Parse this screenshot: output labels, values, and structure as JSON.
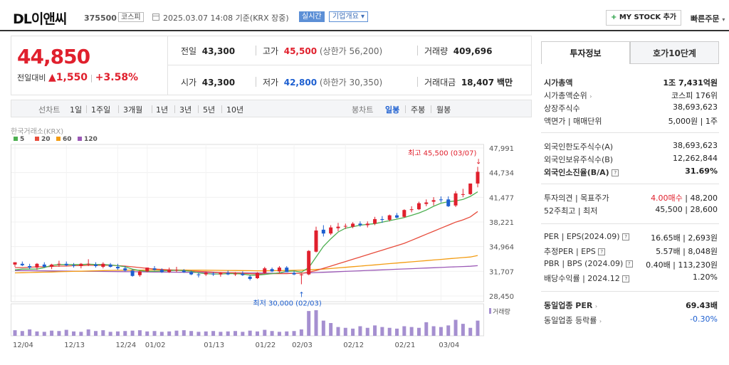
{
  "header": {
    "name": "DL이앤씨",
    "code": "375500",
    "market": "코스피",
    "base_time": "2025.03.07 14:08 기준(KRX 장중)",
    "realtime": "실시간",
    "company_info": "기업개요",
    "mystock": "MY STOCK 추가",
    "quick_order": "빠른주문"
  },
  "price": {
    "current": "44,850",
    "change_label": "전일대비",
    "change": "1,550",
    "change_pct": "+3.58%"
  },
  "quote": {
    "prev_label": "전일",
    "prev": "43,300",
    "high_label": "고가",
    "high": "45,500",
    "upper_limit": "(상한가 56,200)",
    "volume_label": "거래량",
    "volume": "409,696",
    "open_label": "시가",
    "open": "43,300",
    "low_label": "저가",
    "low": "42,800",
    "lower_limit": "(하한가 30,350)",
    "amount_label": "거래대금",
    "amount": "18,407",
    "amount_unit": "백만"
  },
  "period_bar": {
    "line_label": "선차트",
    "line_items": [
      "1일",
      "1주일",
      "3개월",
      "1년",
      "3년",
      "5년",
      "10년"
    ],
    "candle_label": "봉차트",
    "candle_items": [
      "일봉",
      "주봉",
      "월봉"
    ],
    "candle_active": "일봉"
  },
  "chart_data": {
    "type": "candlestick",
    "source": "한국거래소(KRX)",
    "legend": [
      "5",
      "20",
      "60",
      "120"
    ],
    "legend_colors": [
      "#4caf50",
      "#e74c3c",
      "#f39c12",
      "#9b59b6"
    ],
    "y_ticks": [
      "47,991",
      "44,734",
      "41,477",
      "38,221",
      "34,964",
      "31,707",
      "28,450"
    ],
    "y_min": 28450,
    "y_max": 47991,
    "x_labels": [
      "12/04",
      "12/13",
      "12/24",
      "01/02",
      "01/13",
      "01/22",
      "02/03",
      "02/12",
      "02/21",
      "03/04"
    ],
    "x_label_index": [
      0,
      7,
      14,
      18,
      26,
      33,
      38,
      45,
      52,
      58
    ],
    "high_annotation": "최고 45,500 (03/07)",
    "low_annotation": "최저 30,000 (02/03)",
    "volume_label": "거래량",
    "candles": [
      [
        32600,
        32900,
        32300,
        32900
      ],
      [
        32700,
        33000,
        32400,
        32500
      ],
      [
        32400,
        32700,
        32000,
        32200
      ],
      [
        32200,
        32800,
        31900,
        32700
      ],
      [
        32600,
        32900,
        32200,
        32300
      ],
      [
        32300,
        32700,
        32000,
        32600
      ],
      [
        32600,
        33100,
        32300,
        32700
      ],
      [
        32700,
        33000,
        32400,
        32500
      ],
      [
        32500,
        32800,
        32200,
        32400
      ],
      [
        32400,
        32800,
        32100,
        32700
      ],
      [
        32700,
        33300,
        32400,
        32700
      ],
      [
        32600,
        32900,
        32200,
        32400
      ],
      [
        32300,
        32900,
        32100,
        32700
      ],
      [
        32600,
        32800,
        32200,
        32300
      ],
      [
        32300,
        32700,
        31900,
        32100
      ],
      [
        32100,
        32400,
        31700,
        31800
      ],
      [
        31800,
        32000,
        31000,
        31100
      ],
      [
        31200,
        31800,
        31000,
        31700
      ],
      [
        31700,
        32200,
        31600,
        32200
      ],
      [
        32100,
        32400,
        31800,
        31900
      ],
      [
        31900,
        32100,
        31500,
        31600
      ],
      [
        31600,
        32200,
        31500,
        31900
      ],
      [
        31900,
        32300,
        31600,
        31900
      ],
      [
        31800,
        32000,
        31500,
        31600
      ],
      [
        31600,
        31800,
        31200,
        31300
      ],
      [
        31300,
        31500,
        30900,
        31200
      ],
      [
        31300,
        31700,
        31100,
        31500
      ],
      [
        31400,
        31600,
        31100,
        31300
      ],
      [
        31300,
        31600,
        31000,
        31500
      ],
      [
        31500,
        31800,
        31200,
        31300
      ],
      [
        31300,
        31600,
        31100,
        31400
      ],
      [
        31400,
        31700,
        31100,
        31200
      ],
      [
        31000,
        31200,
        30500,
        30700
      ],
      [
        30800,
        31600,
        30700,
        31500
      ],
      [
        31500,
        32300,
        31400,
        32100
      ],
      [
        32000,
        32200,
        31600,
        31700
      ],
      [
        31700,
        32400,
        31500,
        32200
      ],
      [
        32200,
        32400,
        31600,
        31600
      ],
      [
        31500,
        31800,
        31200,
        31300
      ],
      [
        31200,
        31400,
        30000,
        31300
      ],
      [
        31300,
        34500,
        31200,
        34400
      ],
      [
        34300,
        37600,
        34200,
        37100
      ],
      [
        37200,
        37800,
        36300,
        36700
      ],
      [
        36700,
        37800,
        36500,
        37500
      ],
      [
        37400,
        38100,
        37000,
        37600
      ],
      [
        37700,
        38000,
        37300,
        37700
      ],
      [
        37600,
        38200,
        37400,
        38000
      ],
      [
        38000,
        38300,
        37600,
        37800
      ],
      [
        37800,
        38300,
        37500,
        38000
      ],
      [
        38000,
        38900,
        37800,
        38600
      ],
      [
        38600,
        39000,
        38100,
        38500
      ],
      [
        38500,
        39200,
        38300,
        39100
      ],
      [
        39100,
        39400,
        38700,
        38800
      ],
      [
        38900,
        39900,
        38800,
        39800
      ],
      [
        39800,
        40300,
        39500,
        39900
      ],
      [
        39900,
        40900,
        39800,
        40700
      ],
      [
        40600,
        41200,
        40300,
        40800
      ],
      [
        40900,
        41500,
        40400,
        41100
      ],
      [
        41200,
        41600,
        40800,
        41100
      ],
      [
        41200,
        41600,
        40200,
        40300
      ],
      [
        40400,
        42300,
        40200,
        42000
      ],
      [
        41800,
        42600,
        41500,
        41900
      ],
      [
        41900,
        43300,
        41800,
        43300
      ],
      [
        43300,
        45500,
        42800,
        44850
      ]
    ],
    "ma5": [
      31900,
      32000,
      32000,
      32000,
      32200,
      32500,
      32600,
      32600,
      32600,
      32600,
      32650,
      32600,
      32600,
      32550,
      32450,
      32300,
      32000,
      31800,
      31700,
      31700,
      31750,
      31800,
      31850,
      31800,
      31700,
      31500,
      31400,
      31350,
      31350,
      31400,
      31400,
      31350,
      31200,
      31200,
      31300,
      31400,
      31500,
      31700,
      31750,
      31600,
      32200,
      33600,
      35000,
      36000,
      36900,
      37400,
      37600,
      37800,
      37900,
      38000,
      38200,
      38400,
      38600,
      38800,
      39100,
      39400,
      39800,
      40300,
      40700,
      40900,
      41000,
      41200,
      41600,
      42200
    ],
    "ma20": [
      32200,
      32200,
      32250,
      32300,
      32300,
      32350,
      32400,
      32400,
      32450,
      32450,
      32500,
      32500,
      32500,
      32500,
      32450,
      32400,
      32300,
      32200,
      32100,
      32000,
      31950,
      31900,
      31850,
      31800,
      31750,
      31700,
      31650,
      31600,
      31550,
      31500,
      31500,
      31450,
      31400,
      31350,
      31350,
      31400,
      31400,
      31400,
      31450,
      31450,
      31600,
      31800,
      32100,
      32400,
      32700,
      33000,
      33300,
      33600,
      33900,
      34200,
      34500,
      34800,
      35100,
      35400,
      35800,
      36200,
      36600,
      37000,
      37400,
      37800,
      38200,
      38500,
      38900,
      39600
    ],
    "ma60": [
      31500,
      31520,
      31550,
      31580,
      31600,
      31620,
      31650,
      31680,
      31700,
      31720,
      31750,
      31780,
      31800,
      31820,
      31840,
      31850,
      31860,
      31870,
      31880,
      31880,
      31880,
      31880,
      31880,
      31880,
      31870,
      31860,
      31850,
      31840,
      31830,
      31820,
      31810,
      31800,
      31790,
      31780,
      31780,
      31790,
      31800,
      31820,
      31840,
      31860,
      31900,
      31950,
      32000,
      32080,
      32160,
      32240,
      32320,
      32400,
      32480,
      32560,
      32640,
      32720,
      32800,
      32880,
      32960,
      33040,
      33120,
      33200,
      33280,
      33360,
      33440,
      33520,
      33600,
      33800
    ],
    "ma120": [
      31800,
      31800,
      31790,
      31780,
      31770,
      31760,
      31750,
      31740,
      31730,
      31720,
      31710,
      31700,
      31690,
      31680,
      31670,
      31660,
      31650,
      31640,
      31630,
      31620,
      31610,
      31600,
      31590,
      31580,
      31570,
      31560,
      31550,
      31540,
      31530,
      31520,
      31510,
      31500,
      31490,
      31480,
      31470,
      31460,
      31450,
      31450,
      31460,
      31470,
      31500,
      31540,
      31580,
      31620,
      31660,
      31700,
      31740,
      31780,
      31820,
      31860,
      31900,
      31940,
      31980,
      32020,
      32060,
      32100,
      32140,
      32180,
      32220,
      32260,
      32300,
      32340,
      32380,
      32450
    ],
    "volumes": [
      14,
      12,
      16,
      11,
      10,
      13,
      12,
      15,
      11,
      10,
      16,
      12,
      14,
      10,
      11,
      12,
      13,
      14,
      11,
      12,
      10,
      11,
      13,
      14,
      12,
      10,
      11,
      12,
      10,
      11,
      12,
      10,
      13,
      11,
      15,
      12,
      10,
      11,
      12,
      16,
      62,
      64,
      38,
      32,
      22,
      20,
      18,
      24,
      20,
      26,
      22,
      20,
      18,
      24,
      22,
      20,
      34,
      24,
      22,
      26,
      40,
      30,
      20,
      38
    ]
  },
  "right_panel": {
    "tab_active": "투자정보",
    "tab_other": "호가10단계",
    "rows": [
      {
        "label": "시가총액",
        "value": "1조 7,431억원"
      },
      {
        "label": "시가총액순위",
        "value": "코스피 176위"
      },
      {
        "label": "상장주식수",
        "value": "38,693,623"
      },
      {
        "label": "액면가 | 매매단위",
        "value": "5,000원 | 1주"
      },
      {
        "label": "외국인한도주식수(A)",
        "value": "38,693,623"
      },
      {
        "label": "외국인보유주식수(B)",
        "value": "12,262,844"
      },
      {
        "label": "외국인소진율(B/A)",
        "value": "31.69%"
      },
      {
        "label": "투자의견 | 목표주가",
        "value_red": "4.00매수",
        "value": "48,200"
      },
      {
        "label": "52주최고 | 최저",
        "value": "45,500 | 28,600"
      },
      {
        "label": "PER | EPS(2024.09)",
        "value": "16.65배 | 2,693원"
      },
      {
        "label": "추정PER | EPS",
        "value": "5.57배 | 8,048원"
      },
      {
        "label": "PBR | BPS (2024.09)",
        "value": "0.40배 | 113,230원"
      },
      {
        "label": "배당수익률 | 2024.12",
        "value": "1.20%"
      },
      {
        "label": "동일업종 PER",
        "value": "69.43배"
      },
      {
        "label": "동일업종 등락률",
        "value": "-0.30%"
      }
    ]
  }
}
